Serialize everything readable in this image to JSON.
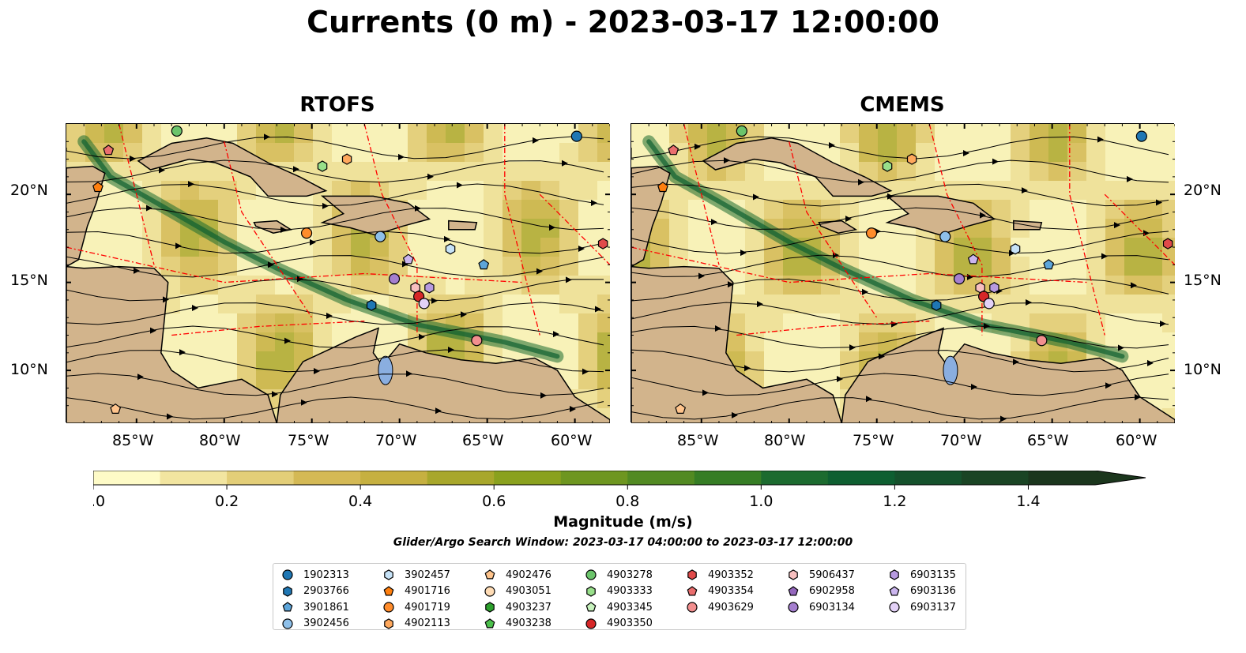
{
  "title": "Currents (0 m) - 2023-03-17 12:00:00",
  "panels": [
    {
      "id": "rtofs",
      "title": "RTOFS"
    },
    {
      "id": "cmems",
      "title": "CMEMS"
    }
  ],
  "map": {
    "lon_range": [
      -89,
      -58
    ],
    "lat_range": [
      7,
      24
    ],
    "lat_ticks": [
      "20°N",
      "15°N",
      "10°N"
    ],
    "lon_ticks": [
      "85°W",
      "80°W",
      "75°W",
      "70°W",
      "65°W",
      "60°W"
    ],
    "land_color": "#d2b48c",
    "eez_line_color": "#ff0000",
    "streamline_color": "#000000"
  },
  "colorbar": {
    "label": "Magnitude (m/s)",
    "ticks": [
      "0.0",
      "0.2",
      "0.4",
      "0.6",
      "0.8",
      "1.0",
      "1.2",
      "1.4"
    ],
    "range": [
      0.0,
      1.5
    ],
    "extend": "max",
    "colors": [
      "#fefbc7",
      "#f2e5a0",
      "#e3ce78",
      "#d4b955",
      "#c6b040",
      "#a8a72b",
      "#8aa11e",
      "#6e9620",
      "#528a22",
      "#367d25",
      "#1c6b2f",
      "#0e5f31",
      "#15512c",
      "#1a4424",
      "#1b361d"
    ]
  },
  "search_window": "Glider/Argo Search Window: 2023-03-17 04:00:00 to 2023-03-17 12:00:00",
  "legend": {
    "columns": [
      [
        {
          "label": "1902313",
          "marker": "circle",
          "color": "#1f77b4"
        },
        {
          "label": "2903766",
          "marker": "hexagon",
          "color": "#1f77b4"
        },
        {
          "label": "3901861",
          "marker": "pentagon",
          "color": "#5da5da"
        },
        {
          "label": "3902456",
          "marker": "circle",
          "color": "#8ec0ea"
        }
      ],
      [
        {
          "label": "3902457",
          "marker": "hexagon",
          "color": "#c6e2f7"
        },
        {
          "label": "4901716",
          "marker": "pentagon",
          "color": "#ff7f0e"
        },
        {
          "label": "4901719",
          "marker": "circle",
          "color": "#ff8c2b"
        },
        {
          "label": "4902113",
          "marker": "hexagon",
          "color": "#ffa85c"
        }
      ],
      [
        {
          "label": "4902476",
          "marker": "pentagon",
          "color": "#ffc48c"
        },
        {
          "label": "4903051",
          "marker": "circle",
          "color": "#ffdcb5"
        },
        {
          "label": "4903237",
          "marker": "hexagon",
          "color": "#2ca02c"
        },
        {
          "label": "4903238",
          "marker": "pentagon",
          "color": "#4cc04c"
        }
      ],
      [
        {
          "label": "4903278",
          "marker": "circle",
          "color": "#6bc46b"
        },
        {
          "label": "4903333",
          "marker": "hexagon",
          "color": "#98df8a"
        },
        {
          "label": "4903345",
          "marker": "pentagon",
          "color": "#c7f2bd"
        },
        {
          "label": "4903350",
          "marker": "circle",
          "color": "#d62728"
        }
      ],
      [
        {
          "label": "4903352",
          "marker": "hexagon",
          "color": "#e04a4a"
        },
        {
          "label": "4903354",
          "marker": "pentagon",
          "color": "#ea6e6e"
        },
        {
          "label": "4903629",
          "marker": "circle",
          "color": "#f28f8f"
        }
      ],
      [
        {
          "label": "5906437",
          "marker": "hexagon",
          "color": "#f8c0c0"
        },
        {
          "label": "6902958",
          "marker": "pentagon",
          "color": "#9467bd"
        },
        {
          "label": "6903134",
          "marker": "circle",
          "color": "#a57fcf"
        }
      ],
      [
        {
          "label": "6903135",
          "marker": "hexagon",
          "color": "#b79ae0"
        },
        {
          "label": "6903136",
          "marker": "pentagon",
          "color": "#cbb5ee"
        },
        {
          "label": "6903137",
          "marker": "circle",
          "color": "#e3d1f7"
        }
      ]
    ]
  },
  "floats_rtofs": [
    {
      "id": "1902313",
      "lon": -59.9,
      "lat": 23.3
    },
    {
      "id": "4903278",
      "lon": -82.7,
      "lat": 23.6
    },
    {
      "id": "4903354",
      "lon": -86.6,
      "lat": 22.5
    },
    {
      "id": "4901716",
      "lon": -87.2,
      "lat": 20.4
    },
    {
      "id": "4903333",
      "lon": -74.4,
      "lat": 21.6
    },
    {
      "id": "4902113",
      "lon": -73.0,
      "lat": 22.0
    },
    {
      "id": "4901719",
      "lon": -75.3,
      "lat": 17.8
    },
    {
      "id": "3902456",
      "lon": -71.1,
      "lat": 17.6
    },
    {
      "id": "3902457",
      "lon": -67.1,
      "lat": 16.9
    },
    {
      "id": "4903352",
      "lon": -58.4,
      "lat": 17.2
    },
    {
      "id": "6903136",
      "lon": -69.5,
      "lat": 16.3
    },
    {
      "id": "3901861",
      "lon": -65.2,
      "lat": 16.0
    },
    {
      "id": "6903134",
      "lon": -70.3,
      "lat": 15.2
    },
    {
      "id": "5906437",
      "lon": -69.1,
      "lat": 14.7
    },
    {
      "id": "6903135",
      "lon": -68.3,
      "lat": 14.7
    },
    {
      "id": "4903350",
      "lon": -68.9,
      "lat": 14.2
    },
    {
      "id": "6903137",
      "lon": -68.6,
      "lat": 13.8
    },
    {
      "id": "2903766",
      "lon": -71.6,
      "lat": 13.7
    },
    {
      "id": "4903629",
      "lon": -65.6,
      "lat": 11.7
    },
    {
      "id": "4902476",
      "lon": -86.2,
      "lat": 7.8
    }
  ],
  "floats_cmems": [
    {
      "id": "1902313",
      "lon": -59.9,
      "lat": 23.3
    },
    {
      "id": "4903278",
      "lon": -82.7,
      "lat": 23.6
    },
    {
      "id": "4903354",
      "lon": -86.6,
      "lat": 22.5
    },
    {
      "id": "4901716",
      "lon": -87.2,
      "lat": 20.4
    },
    {
      "id": "4903333",
      "lon": -74.4,
      "lat": 21.6
    },
    {
      "id": "4902113",
      "lon": -73.0,
      "lat": 22.0
    },
    {
      "id": "4901719",
      "lon": -75.3,
      "lat": 17.8
    },
    {
      "id": "3902456",
      "lon": -71.1,
      "lat": 17.6
    },
    {
      "id": "3902457",
      "lon": -67.1,
      "lat": 16.9
    },
    {
      "id": "4903352",
      "lon": -58.4,
      "lat": 17.2
    },
    {
      "id": "6903136",
      "lon": -69.5,
      "lat": 16.3
    },
    {
      "id": "3901861",
      "lon": -65.2,
      "lat": 16.0
    },
    {
      "id": "6903134",
      "lon": -70.3,
      "lat": 15.2
    },
    {
      "id": "5906437",
      "lon": -69.1,
      "lat": 14.7
    },
    {
      "id": "6903135",
      "lon": -68.3,
      "lat": 14.7
    },
    {
      "id": "4903350",
      "lon": -68.9,
      "lat": 14.2
    },
    {
      "id": "6903137",
      "lon": -68.6,
      "lat": 13.8
    },
    {
      "id": "2903766",
      "lon": -71.6,
      "lat": 13.7
    },
    {
      "id": "4903629",
      "lon": -65.6,
      "lat": 11.7
    },
    {
      "id": "4902476",
      "lon": -86.2,
      "lat": 7.8
    }
  ]
}
